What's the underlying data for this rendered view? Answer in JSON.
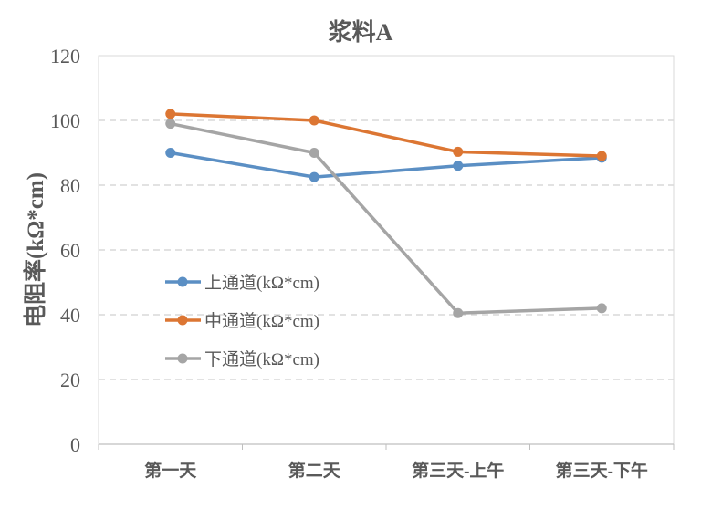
{
  "chart_data": {
    "type": "line",
    "title": "浆料A",
    "xlabel": "",
    "ylabel": "电阻率(kΩ*cm)",
    "ylim": [
      0,
      120
    ],
    "yticks": [
      0,
      20,
      40,
      60,
      80,
      100,
      120
    ],
    "grid": true,
    "legend_position": "center-left",
    "categories": [
      "第一天",
      "第二天",
      "第三天-上午",
      "第三天-下午"
    ],
    "series": [
      {
        "name": "上通道(kΩ*cm)",
        "color": "#5B8FC4",
        "values": [
          90,
          82.5,
          86,
          88.5
        ]
      },
      {
        "name": "中通道(kΩ*cm)",
        "color": "#DC7633",
        "values": [
          102,
          100,
          90.3,
          89
        ]
      },
      {
        "name": "下通道(kΩ*cm)",
        "color": "#A5A5A5",
        "values": [
          99,
          90,
          40.5,
          42
        ]
      }
    ]
  }
}
